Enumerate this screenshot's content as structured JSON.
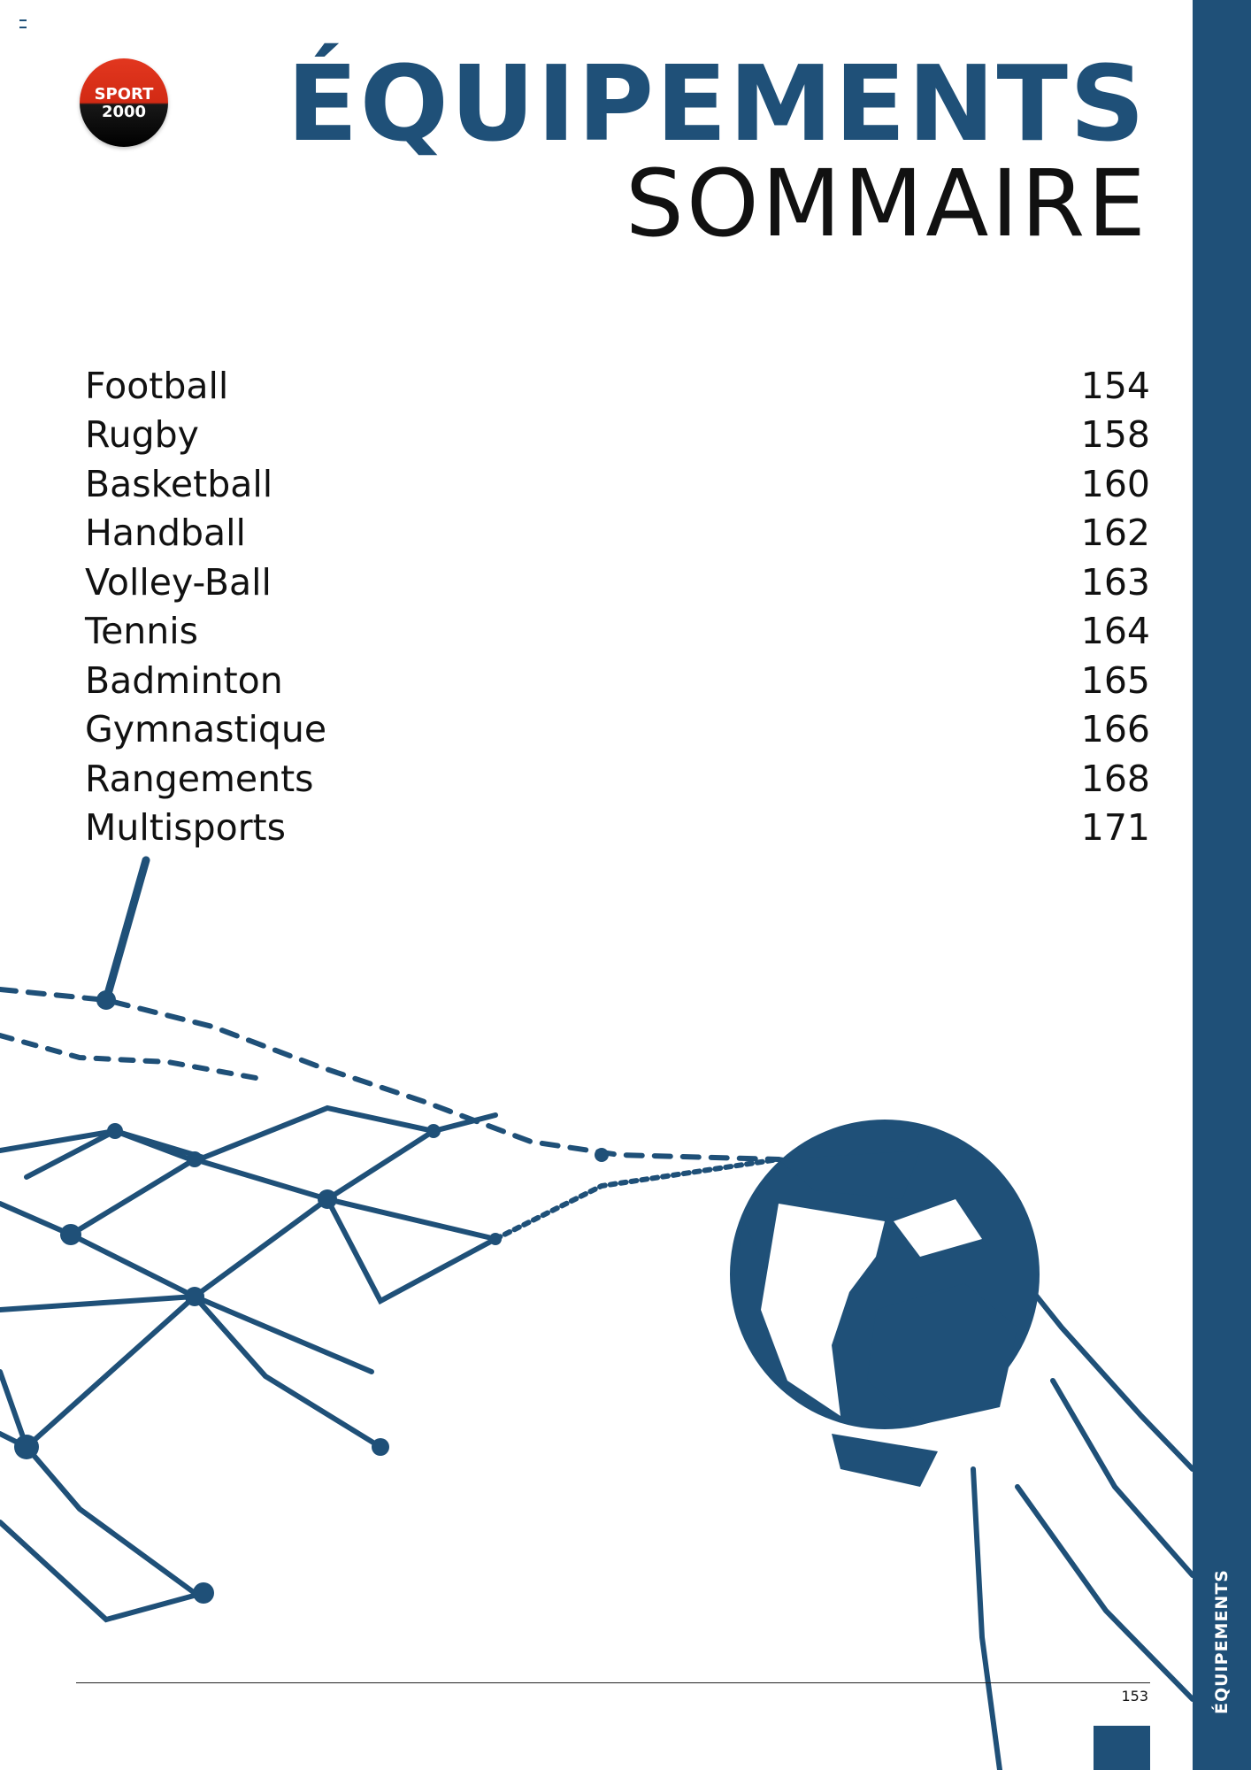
{
  "logo": {
    "line1": "SPORT",
    "line2": "2000"
  },
  "header": {
    "title": "ÉQUIPEMENTS",
    "subtitle": "SOMMAIRE"
  },
  "toc": [
    {
      "label": "Football",
      "page": "154"
    },
    {
      "label": "Rugby",
      "page": "158"
    },
    {
      "label": "Basketball",
      "page": "160"
    },
    {
      "label": "Handball",
      "page": "162"
    },
    {
      "label": "Volley-Ball",
      "page": "163"
    },
    {
      "label": "Tennis",
      "page": "164"
    },
    {
      "label": "Badminton",
      "page": "165"
    },
    {
      "label": "Gymnastique",
      "page": "166"
    },
    {
      "label": "Rangements",
      "page": "168"
    },
    {
      "label": "Multisports",
      "page": "171"
    }
  ],
  "sidebar": {
    "label": "ÉQUIPEMENTS"
  },
  "footer": {
    "page_number": "153"
  },
  "colors": {
    "brand_blue": "#1f5078",
    "logo_red": "#e2371f",
    "text": "#111111"
  },
  "artwork": {
    "icon": "soccer-ball-in-net-illustration"
  }
}
